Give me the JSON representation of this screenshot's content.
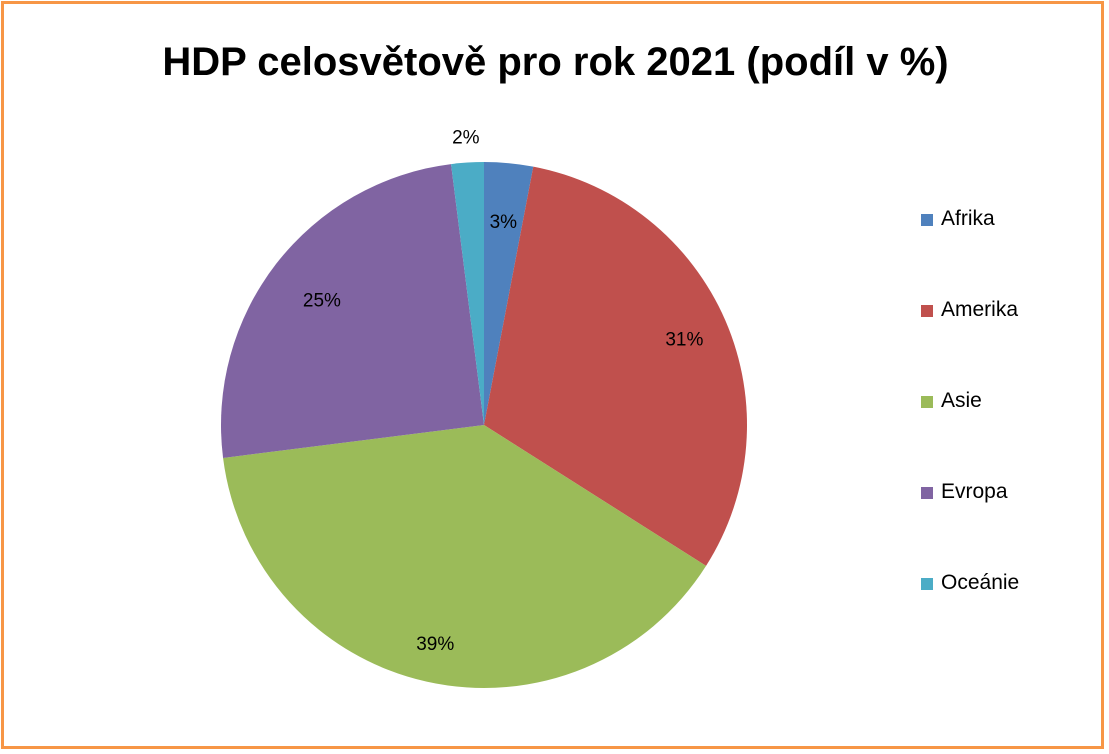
{
  "chart_data": {
    "type": "pie",
    "title": "HDP celosvětově pro rok 2021 (podíl v %)",
    "categories": [
      "Afrika",
      "Amerika",
      "Asie",
      "Evropa",
      "Oceánie"
    ],
    "values": [
      3,
      31,
      39,
      25,
      2
    ],
    "data_labels": [
      "3%",
      "31%",
      "39%",
      "25%",
      "2%"
    ],
    "colors": [
      "#4f81bd",
      "#c0504d",
      "#9bbb59",
      "#8064a2",
      "#4bacc6"
    ],
    "legend_position": "right",
    "frame_color": "#f79646"
  }
}
